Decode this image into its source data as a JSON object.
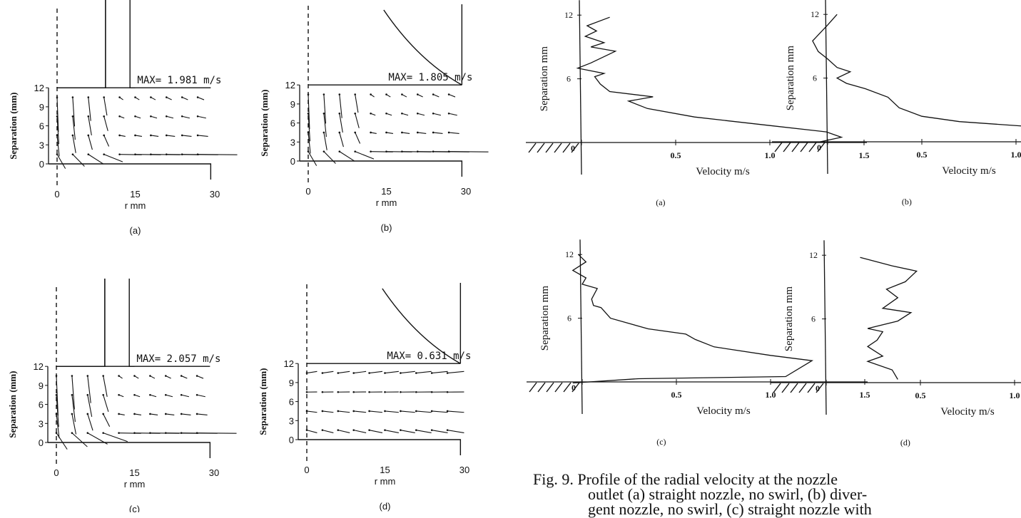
{
  "vector_panels": [
    {
      "label": "(a)",
      "max_label": "MAX= 1.981 m/s",
      "ylabel": "Separation (mm)",
      "xlabel": "r  mm",
      "xticks": [
        "0",
        "15",
        "30"
      ],
      "yticks": [
        "12",
        "9",
        "6",
        "3",
        "0"
      ],
      "nozzle": "straight"
    },
    {
      "label": "(b)",
      "max_label": "MAX= 1.805 m/s",
      "ylabel": "Separation (mm)",
      "xlabel": "r  mm",
      "xticks": [
        "0",
        "15",
        "30"
      ],
      "yticks": [
        "12",
        "9",
        "6",
        "3",
        "0"
      ],
      "nozzle": "divergent"
    },
    {
      "label": "(c)",
      "max_label": "MAX= 2.057 m/s",
      "ylabel": "Separation (mm)",
      "xlabel": "r  mm",
      "xticks": [
        "0",
        "15",
        "30"
      ],
      "yticks": [
        "12",
        "9",
        "6",
        "3",
        "0"
      ],
      "nozzle": "straight"
    },
    {
      "label": "(d)",
      "max_label": "MAX= 0.631 m/s",
      "ylabel": "Separation (mm)",
      "xlabel": "r  mm",
      "xticks": [
        "0",
        "15",
        "30"
      ],
      "yticks": [
        "12",
        "9",
        "6",
        "3",
        "0"
      ],
      "nozzle": "divergent"
    }
  ],
  "chart_data": [
    {
      "type": "line",
      "label": "(a)",
      "xlabel": "Velocity  m/s",
      "ylabel": "Separation  mm",
      "xticks": [
        "0",
        "0.5",
        "1.0",
        "1.5"
      ],
      "yticks": [
        "6",
        "12"
      ],
      "xlim": [
        0,
        1.5
      ],
      "ylim": [
        0,
        12
      ],
      "points": [
        [
          1.25,
          0
        ],
        [
          1.38,
          0.5
        ],
        [
          1.3,
          1
        ],
        [
          1.0,
          1.6
        ],
        [
          0.6,
          2.4
        ],
        [
          0.35,
          3.2
        ],
        [
          0.25,
          3.9
        ],
        [
          0.38,
          4.3
        ],
        [
          0.15,
          4.8
        ],
        [
          0.1,
          5.5
        ],
        [
          0.07,
          6.2
        ],
        [
          0.12,
          6.5
        ],
        [
          -0.02,
          7.0
        ],
        [
          0.05,
          7.5
        ],
        [
          0.18,
          8.6
        ],
        [
          0.05,
          9.0
        ],
        [
          0.12,
          9.4
        ],
        [
          0.02,
          10.0
        ],
        [
          0.08,
          10.5
        ],
        [
          0.03,
          11.0
        ],
        [
          0.15,
          11.8
        ]
      ]
    },
    {
      "type": "line",
      "label": "(b)",
      "xlabel": "Velocity  m/s",
      "ylabel": "Separation  mm",
      "xticks": [
        "0",
        "0.5",
        "1.0",
        "1.5"
      ],
      "yticks": [
        "6",
        "12"
      ],
      "xlim": [
        0,
        1.5
      ],
      "ylim": [
        0,
        12
      ],
      "points": [
        [
          1.43,
          0.3
        ],
        [
          1.15,
          0.9
        ],
        [
          1.1,
          1.4
        ],
        [
          0.7,
          1.9
        ],
        [
          0.5,
          2.4
        ],
        [
          0.38,
          3.2
        ],
        [
          0.32,
          4.2
        ],
        [
          0.2,
          5.0
        ],
        [
          0.1,
          5.5
        ],
        [
          0.05,
          6.0
        ],
        [
          0.12,
          6.6
        ],
        [
          0.05,
          7.0
        ],
        [
          0.0,
          7.8
        ],
        [
          -0.05,
          8.5
        ],
        [
          -0.08,
          9.5
        ],
        [
          0.0,
          11.0
        ],
        [
          0.05,
          12.0
        ]
      ]
    },
    {
      "type": "line",
      "label": "(c)",
      "xlabel": "Velocity  m/s",
      "ylabel": "Separation  mm",
      "xticks": [
        "0",
        "0.5",
        "1.0",
        "1.5"
      ],
      "yticks": [
        "6",
        "12"
      ],
      "xlim": [
        0,
        1.5
      ],
      "ylim": [
        0,
        12
      ],
      "points": [
        [
          -0.05,
          -0.1
        ],
        [
          0.3,
          0.3
        ],
        [
          1.08,
          0.5
        ],
        [
          1.22,
          2.0
        ],
        [
          1.0,
          2.5
        ],
        [
          0.7,
          3.3
        ],
        [
          0.6,
          4.0
        ],
        [
          0.55,
          4.5
        ],
        [
          0.35,
          5.0
        ],
        [
          0.15,
          6.0
        ],
        [
          0.1,
          7.0
        ],
        [
          0.06,
          7.2
        ],
        [
          0.05,
          7.8
        ],
        [
          0.08,
          8.8
        ],
        [
          0.0,
          9.2
        ],
        [
          0.02,
          9.8
        ],
        [
          -0.05,
          10.5
        ],
        [
          0.02,
          11.3
        ],
        [
          -0.02,
          12.0
        ]
      ]
    },
    {
      "type": "line",
      "label": "(d)",
      "xlabel": "Velocity  m/s",
      "ylabel": "Separation  mm",
      "xticks": [
        "0",
        "0.5",
        "1.0",
        "1.5"
      ],
      "yticks": [
        "6",
        "12"
      ],
      "xlim": [
        0,
        1.5
      ],
      "ylim": [
        0,
        12
      ],
      "points": [
        [
          0.38,
          0.3
        ],
        [
          0.35,
          1.2
        ],
        [
          0.22,
          2.0
        ],
        [
          0.3,
          2.5
        ],
        [
          0.22,
          3.4
        ],
        [
          0.27,
          4.0
        ],
        [
          0.3,
          4.8
        ],
        [
          0.22,
          5.1
        ],
        [
          0.38,
          5.8
        ],
        [
          0.45,
          6.6
        ],
        [
          0.3,
          7.0
        ],
        [
          0.38,
          8.0
        ],
        [
          0.32,
          8.8
        ],
        [
          0.42,
          9.5
        ],
        [
          0.48,
          10.5
        ],
        [
          0.35,
          11.0
        ],
        [
          0.18,
          11.8
        ]
      ]
    }
  ],
  "caption": {
    "line1": "Fig. 9. Profile of the radial velocity at the nozzle",
    "line2": "outlet (a) straight nozzle, no swirl, (b) diver-",
    "line3": "gent nozzle, no swirl, (c) straight nozzle with"
  }
}
